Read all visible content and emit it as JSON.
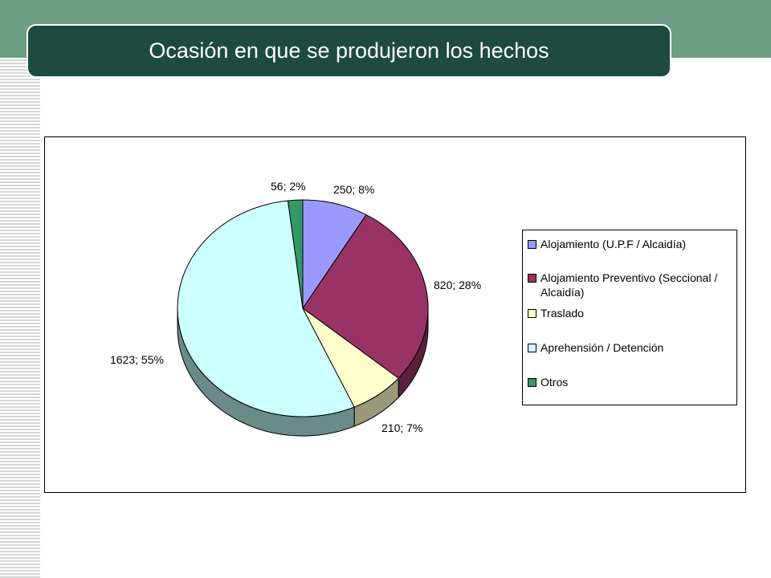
{
  "title": "Ocasión en que se produjeron los hechos",
  "chart_data": {
    "type": "pie",
    "style": "3d",
    "slices": [
      {
        "label": "Alojamiento (U.P.F / Alcaidía)",
        "value": 250,
        "percent": 8,
        "data_label": "250; 8%",
        "color": "#9999ff",
        "side_color": "#5c5c99"
      },
      {
        "label": "Alojamiento Preventivo (Seccional / Alcaidía)",
        "value": 820,
        "percent": 28,
        "data_label": "820; 28%",
        "color": "#993366",
        "side_color": "#5c1f3d"
      },
      {
        "label": "Traslado",
        "value": 210,
        "percent": 7,
        "data_label": "210; 7%",
        "color": "#ffffcc",
        "side_color": "#99997a"
      },
      {
        "label": "Aprehensión / Detención",
        "value": 1623,
        "percent": 55,
        "data_label": "1623; 55%",
        "color": "#ccffff",
        "side_color": "#6b8a8a"
      },
      {
        "label": "Otros",
        "value": 56,
        "percent": 2,
        "data_label": "56; 2%",
        "color": "#339966",
        "side_color": "#1f5c3d"
      }
    ],
    "legend_placement": "right"
  }
}
